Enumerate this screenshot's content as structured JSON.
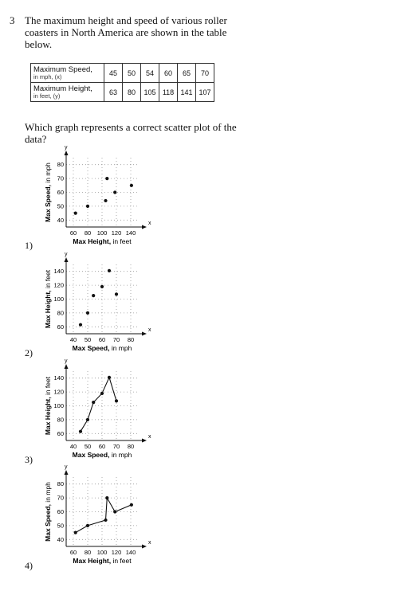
{
  "question": {
    "number": "3",
    "stem": "The maximum height and speed of various roller coasters in North America are shown in the table below.",
    "prompt": "Which graph represents a correct scatter plot of the data?"
  },
  "table": {
    "row1": {
      "label": "Maximum Speed,",
      "sub": "in mph, (x)",
      "values": [
        "45",
        "50",
        "54",
        "60",
        "65",
        "70"
      ]
    },
    "row2": {
      "label": "Maximum Height,",
      "sub": "in feet, (y)",
      "values": [
        "63",
        "80",
        "105",
        "118",
        "141",
        "107"
      ]
    }
  },
  "choices": [
    "1)",
    "2)",
    "3)",
    "4)"
  ],
  "chart_data": [
    {
      "type": "scatter",
      "choice": "1)",
      "xlabel": "Max Height,",
      "xlabel_unit": "in feet",
      "ylabel": "Max Speed,",
      "ylabel_unit": "in mph",
      "axis_letters": {
        "x": "x",
        "y": "y"
      },
      "xticks": [
        60,
        80,
        100,
        120,
        140
      ],
      "yticks": [
        40,
        50,
        60,
        70,
        80
      ],
      "xlim": [
        50,
        150
      ],
      "ylim": [
        35,
        85
      ],
      "points": [
        [
          63,
          45
        ],
        [
          80,
          50
        ],
        [
          105,
          54
        ],
        [
          118,
          60
        ],
        [
          141,
          65
        ],
        [
          107,
          70
        ]
      ],
      "connected": false
    },
    {
      "type": "scatter",
      "choice": "2)",
      "xlabel": "Max Speed,",
      "xlabel_unit": "in mph",
      "ylabel": "Max Height,",
      "ylabel_unit": "in feet",
      "axis_letters": {
        "x": "x",
        "y": "y"
      },
      "xticks": [
        40,
        50,
        60,
        70,
        80
      ],
      "yticks": [
        60,
        80,
        100,
        120,
        140
      ],
      "xlim": [
        35,
        85
      ],
      "ylim": [
        50,
        150
      ],
      "points": [
        [
          45,
          63
        ],
        [
          50,
          80
        ],
        [
          54,
          105
        ],
        [
          60,
          118
        ],
        [
          65,
          141
        ],
        [
          70,
          107
        ]
      ],
      "connected": false
    },
    {
      "type": "line",
      "choice": "3)",
      "xlabel": "Max Speed,",
      "xlabel_unit": "in mph",
      "ylabel": "Max Height,",
      "ylabel_unit": "in feet",
      "axis_letters": {
        "x": "x",
        "y": "y"
      },
      "xticks": [
        40,
        50,
        60,
        70,
        80
      ],
      "yticks": [
        60,
        80,
        100,
        120,
        140
      ],
      "xlim": [
        35,
        85
      ],
      "ylim": [
        50,
        150
      ],
      "points": [
        [
          45,
          63
        ],
        [
          50,
          80
        ],
        [
          54,
          105
        ],
        [
          60,
          118
        ],
        [
          65,
          141
        ],
        [
          70,
          107
        ]
      ],
      "connected": true
    },
    {
      "type": "line",
      "choice": "4)",
      "xlabel": "Max Height,",
      "xlabel_unit": "in feet",
      "ylabel": "Max Speed,",
      "ylabel_unit": "in mph",
      "axis_letters": {
        "x": "x",
        "y": "y"
      },
      "xticks": [
        60,
        80,
        100,
        120,
        140
      ],
      "yticks": [
        40,
        50,
        60,
        70,
        80
      ],
      "xlim": [
        50,
        150
      ],
      "ylim": [
        35,
        85
      ],
      "points": [
        [
          63,
          45
        ],
        [
          80,
          50
        ],
        [
          105,
          54
        ],
        [
          107,
          70
        ],
        [
          118,
          60
        ],
        [
          141,
          65
        ]
      ],
      "connected": true
    }
  ]
}
